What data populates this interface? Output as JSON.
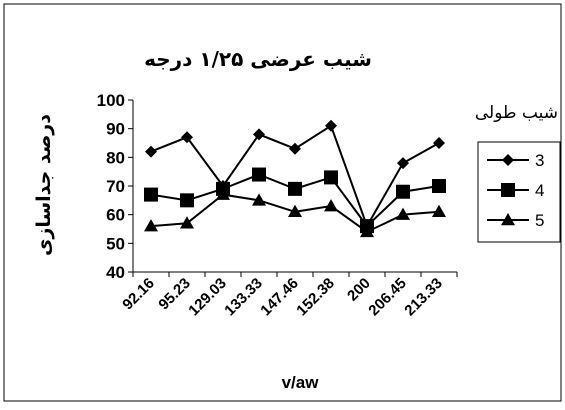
{
  "chart_data": {
    "type": "line",
    "title": "شیب عرضی ۱/۲۵ درجه",
    "xlabel": "v/aw",
    "ylabel": "درصد جداسازی",
    "categories": [
      "92.16",
      "95.23",
      "129.03",
      "133.33",
      "147.46",
      "152.38",
      "200",
      "206.45",
      "213.33"
    ],
    "ylim": [
      40,
      100
    ],
    "yticks": [
      "40",
      "50",
      "60",
      "70",
      "80",
      "90",
      "100"
    ],
    "grid": false,
    "legend": {
      "title": "شیب طولی",
      "placement": "right"
    },
    "series": [
      {
        "name": "3",
        "marker": "diamond",
        "values": [
          82,
          87,
          70,
          88,
          83,
          91,
          56,
          78,
          85
        ]
      },
      {
        "name": "4",
        "marker": "square",
        "values": [
          67,
          65,
          69,
          74,
          69,
          73,
          56,
          68,
          70
        ]
      },
      {
        "name": "5",
        "marker": "triangle",
        "values": [
          56,
          57,
          67,
          65,
          61,
          63,
          54,
          60,
          61
        ]
      }
    ]
  }
}
